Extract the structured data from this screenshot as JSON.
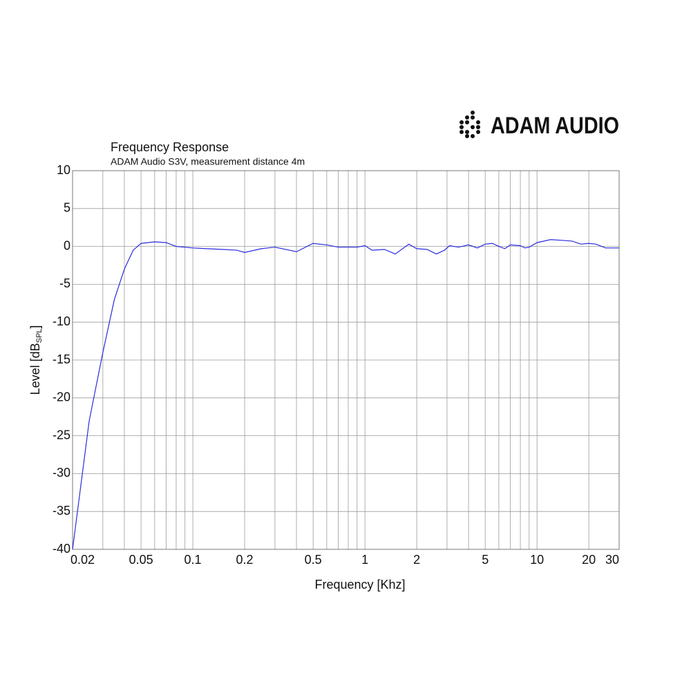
{
  "logo": "ADAM AUDIO",
  "chart_data": {
    "type": "line",
    "title": "Frequency Response",
    "subtitle": "ADAM Audio S3V, measurement distance 4m",
    "xlabel": "Frequency [Khz]",
    "ylabel": [
      "Level [dB",
      "SPL",
      "]"
    ],
    "xscale": "log",
    "xlim": [
      0.02,
      30
    ],
    "ylim": [
      -40,
      10
    ],
    "xticks": [
      0.02,
      0.05,
      0.1,
      0.2,
      0.5,
      1,
      2,
      5,
      10,
      20,
      30
    ],
    "x_minor_grid": [
      0.03,
      0.04,
      0.06,
      0.07,
      0.08,
      0.09,
      0.3,
      0.4,
      0.6,
      0.7,
      0.8,
      0.9,
      3,
      4,
      6,
      7,
      8,
      9
    ],
    "yticks": [
      10,
      5,
      0,
      -5,
      -10,
      -15,
      -20,
      -25,
      -30,
      -35,
      -40
    ],
    "grid": true,
    "series": [
      {
        "name": "S3V",
        "color": "#2a2ae0",
        "x": [
          0.02,
          0.025,
          0.03,
          0.035,
          0.04,
          0.045,
          0.05,
          0.06,
          0.07,
          0.08,
          0.1,
          0.12,
          0.15,
          0.18,
          0.2,
          0.25,
          0.3,
          0.4,
          0.5,
          0.6,
          0.7,
          0.9,
          1,
          1.1,
          1.3,
          1.5,
          1.8,
          2,
          2.3,
          2.6,
          2.9,
          3.1,
          3.5,
          4,
          4.5,
          5,
          5.5,
          6,
          6.5,
          7,
          8,
          8.5,
          9,
          10,
          12,
          14,
          16,
          18,
          20,
          22,
          25,
          30
        ],
        "values": [
          -40,
          -23,
          -14,
          -7,
          -3,
          -0.5,
          0.4,
          0.6,
          0.5,
          0,
          -0.2,
          -0.3,
          -0.4,
          -0.5,
          -0.8,
          -0.3,
          -0.1,
          -0.7,
          0.4,
          0.2,
          -0.1,
          -0.1,
          0.1,
          -0.5,
          -0.4,
          -1,
          0.3,
          -0.3,
          -0.4,
          -1,
          -0.5,
          0.1,
          -0.1,
          0.2,
          -0.2,
          0.3,
          0.4,
          0,
          -0.3,
          0.2,
          0.1,
          -0.2,
          -0.1,
          0.5,
          0.9,
          0.8,
          0.7,
          0.3,
          0.4,
          0.3,
          -0.2,
          -0.2
        ]
      }
    ]
  }
}
